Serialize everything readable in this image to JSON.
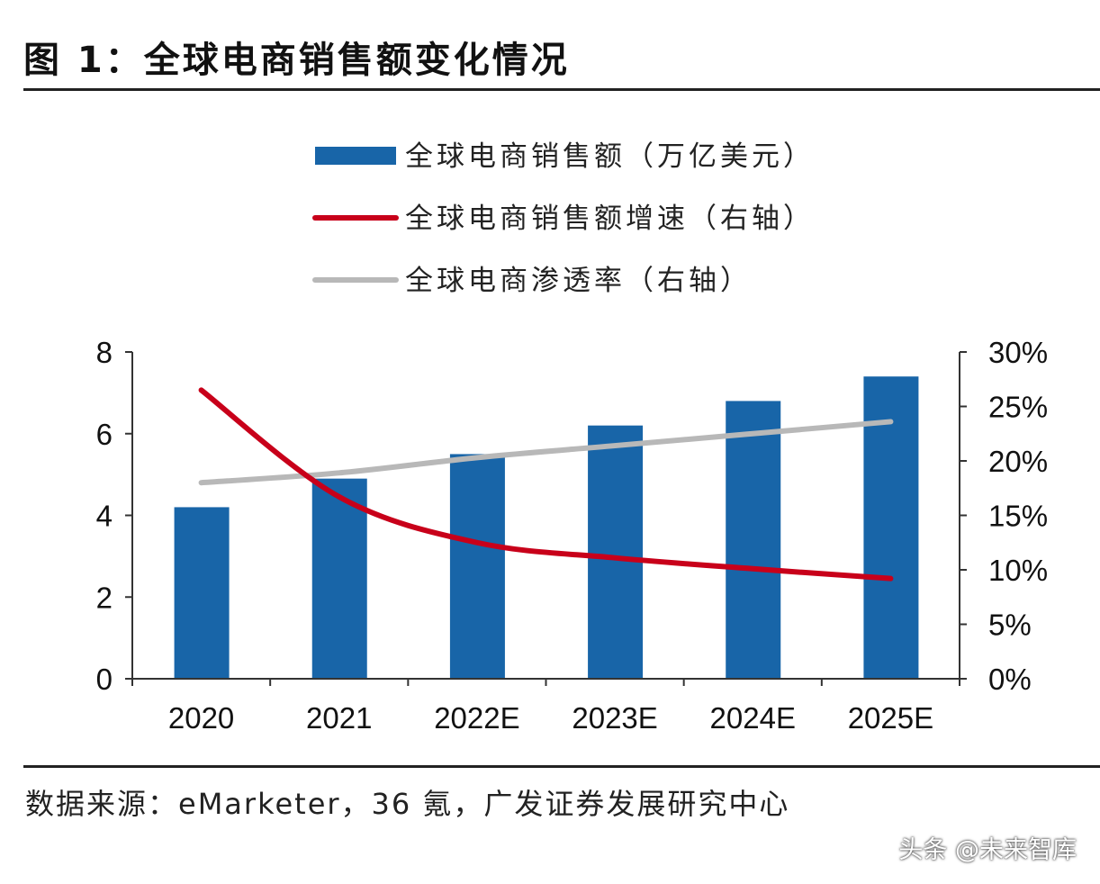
{
  "title": "图 1：全球电商销售额变化情况",
  "source": "数据来源：eMarketer，36 氪，广发证券发展研究中心",
  "watermark": "头条 @未来智库",
  "chart_data": {
    "type": "bar+line",
    "categories": [
      "2020",
      "2021",
      "2022E",
      "2023E",
      "2024E",
      "2025E"
    ],
    "series": [
      {
        "name": "全球电商销售额（万亿美元）",
        "type": "bar",
        "axis": "left",
        "color": "#1865a8",
        "values": [
          4.2,
          4.9,
          5.5,
          6.2,
          6.8,
          7.4
        ]
      },
      {
        "name": "全球电商销售额增速（右轴）",
        "type": "line",
        "axis": "right",
        "color": "#c8001a",
        "values": [
          26.5,
          16.7,
          12.5,
          11.1,
          10.1,
          9.2
        ]
      },
      {
        "name": "全球电商渗透率（右轴）",
        "type": "line",
        "axis": "right",
        "color": "#b8b8b8",
        "values": [
          18.0,
          18.9,
          20.3,
          21.4,
          22.5,
          23.6
        ]
      }
    ],
    "left_axis": {
      "range": [
        0,
        8
      ],
      "ticks": [
        "0",
        "2",
        "4",
        "6",
        "8"
      ]
    },
    "right_axis": {
      "range": [
        0,
        30
      ],
      "unit": "%",
      "ticks": [
        "0%",
        "5%",
        "10%",
        "15%",
        "20%",
        "25%",
        "30%"
      ]
    },
    "legend_position": "top-center",
    "grid": false
  }
}
